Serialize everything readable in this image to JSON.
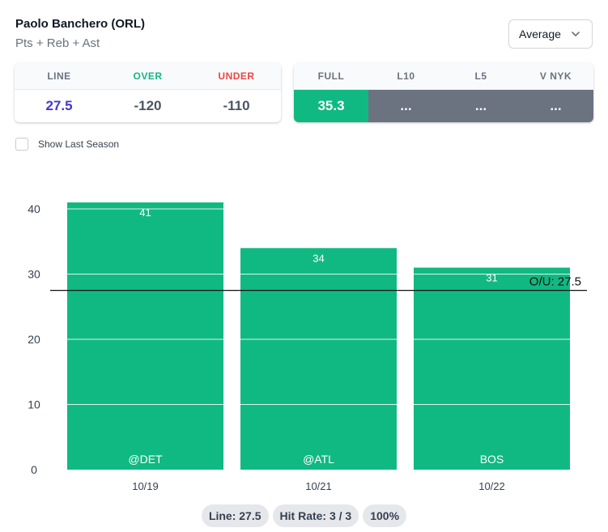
{
  "player": {
    "name": "Paolo Banchero (ORL)",
    "stat": "Pts + Reb + Ast"
  },
  "select": {
    "value": "Average"
  },
  "line_card": {
    "columns": [
      {
        "label": "LINE",
        "value": "27.5"
      },
      {
        "label": "OVER",
        "value": "-120"
      },
      {
        "label": "UNDER",
        "value": "-110"
      }
    ]
  },
  "avg_card": {
    "columns": [
      {
        "label": "FULL",
        "value": "35.3"
      },
      {
        "label": "L10",
        "value": "..."
      },
      {
        "label": "L5",
        "value": "..."
      },
      {
        "label": "V NYK",
        "value": "..."
      }
    ]
  },
  "show_last_season": {
    "label": "Show Last Season",
    "checked": false
  },
  "chart_data": {
    "type": "bar",
    "categories": [
      "10/19",
      "10/21",
      "10/22"
    ],
    "opponents": [
      "@DET",
      "@ATL",
      "BOS"
    ],
    "values": [
      41,
      34,
      31
    ],
    "y_ticks": [
      0,
      10,
      20,
      30,
      40
    ],
    "ylim": [
      0,
      41
    ],
    "line_value": 27.5,
    "line_label": "O/U: 27.5",
    "bar_color": "#10b981",
    "grid": true
  },
  "summary": {
    "line": "Line: 27.5",
    "hit_rate": "Hit Rate: 3 / 3",
    "percent": "100%"
  }
}
